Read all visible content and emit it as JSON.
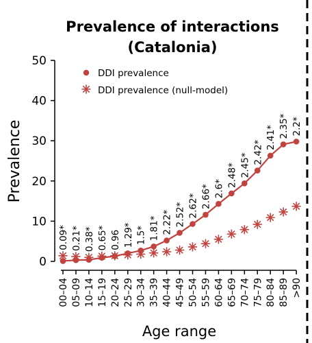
{
  "chart_data": {
    "type": "line",
    "title_line1": "Prevalence of interactions",
    "title_line2": "(Catalonia)",
    "xlabel": "Age range",
    "ylabel": "Prevalence",
    "ylim": [
      0,
      50
    ],
    "yticks": [
      0,
      10,
      20,
      30,
      40,
      50
    ],
    "grid": false,
    "legend_position": "top-left",
    "categories": [
      "00–04",
      "05–09",
      "10–14",
      "15–19",
      "20–24",
      "25–29",
      "30–34",
      "35–39",
      "40–44",
      "45–49",
      "50–54",
      "55–59",
      "60–64",
      "65–69",
      "70–74",
      "75–79",
      "80–84",
      "85–89",
      ">90"
    ],
    "series": [
      {
        "name": "DDI prevalence",
        "marker": "circle",
        "color": "#c0433e",
        "values": [
          0.1,
          0.3,
          0.4,
          0.9,
          1.3,
          2.0,
          2.7,
          3.7,
          5.2,
          7.1,
          9.3,
          11.6,
          14.3,
          16.9,
          19.4,
          22.6,
          26.3,
          29.1,
          29.8
        ]
      },
      {
        "name": "DDI prevalence (null-model)",
        "marker": "asterisk",
        "color": "#c0433e",
        "values": [
          1.4,
          1.2,
          1.0,
          1.3,
          1.4,
          1.6,
          1.8,
          2.1,
          2.4,
          2.8,
          3.6,
          4.4,
          5.5,
          6.8,
          7.9,
          9.2,
          10.9,
          12.3,
          13.7
        ]
      }
    ],
    "annotations": [
      "0.09*",
      "0.21*",
      "0.38*",
      "0.65*",
      "0.96",
      "1.29*",
      "1.5*",
      "1.81*",
      "2.22*",
      "2.52*",
      "2.62*",
      "2.66*",
      "2.6*",
      "2.48*",
      "2.45*",
      "2.42*",
      "2.41*",
      "2.35*",
      "2.2*"
    ]
  }
}
